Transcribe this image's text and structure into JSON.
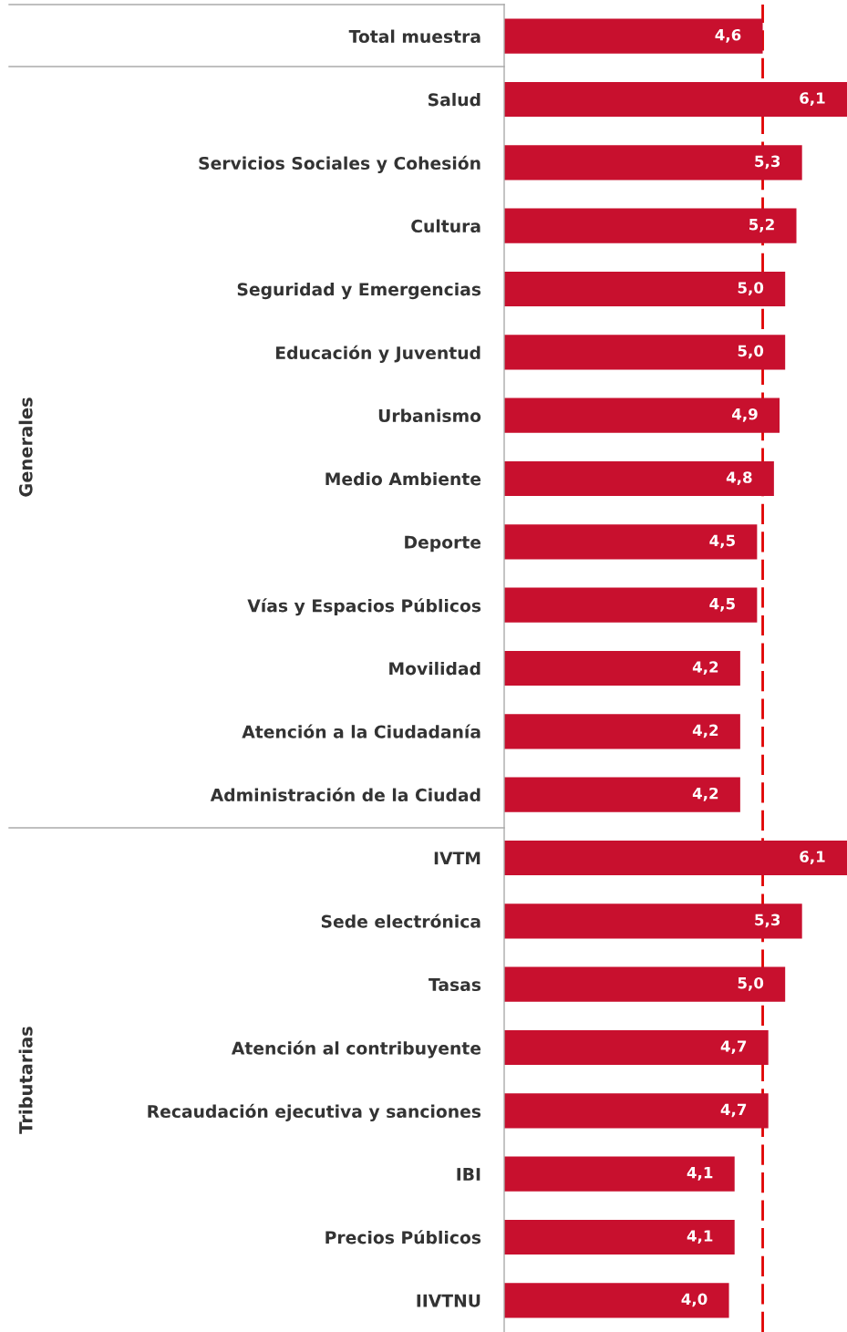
{
  "chart_data": {
    "type": "bar",
    "orientation": "horizontal",
    "categories": [
      "Total muestra",
      "Salud",
      "Servicios Sociales y Cohesión",
      "Cultura",
      "Seguridad y Emergencias",
      "Educación y Juventud",
      "Urbanismo",
      "Medio Ambiente",
      "Deporte",
      "Vías y Espacios Públicos",
      "Movilidad",
      "Atención a la Ciudadanía",
      "Administración de la Ciudad",
      "IVTM",
      "Sede electrónica",
      "Tasas",
      "Atención al contribuyente",
      "Recaudación ejecutiva y sanciones",
      "IBI",
      "Precios Públicos",
      "IIVTNU"
    ],
    "values": [
      4.6,
      6.1,
      5.3,
      5.2,
      5.0,
      5.0,
      4.9,
      4.8,
      4.5,
      4.5,
      4.2,
      4.2,
      4.2,
      6.1,
      5.3,
      5.0,
      4.7,
      4.7,
      4.1,
      4.1,
      4.0
    ],
    "value_labels": [
      "4,6",
      "6,1",
      "5,3",
      "5,2",
      "5,0",
      "5,0",
      "4,9",
      "4,8",
      "4,5",
      "4,5",
      "4,2",
      "4,2",
      "4,2",
      "6,1",
      "5,3",
      "5,0",
      "4,7",
      "4,7",
      "4,1",
      "4,1",
      "4,0"
    ],
    "color": "#c8102e",
    "grid": false,
    "ref_lines": [
      {
        "axis": "x",
        "value": 4.6,
        "color": "#e00000",
        "line_style": "dashed"
      }
    ],
    "annotations": [
      "Generales",
      "Tributarias"
    ]
  }
}
